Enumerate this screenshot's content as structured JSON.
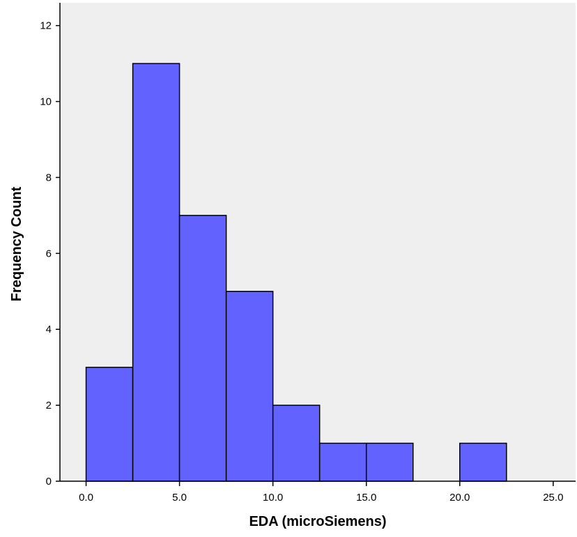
{
  "colors": {
    "plot_background": "#efefef",
    "bar_fill": "#6262ff",
    "bar_stroke": "#000000",
    "axis": "#000000"
  },
  "chart_data": {
    "type": "bar",
    "subtype": "histogram",
    "title": "",
    "xlabel": "EDA (microSiemens)",
    "ylabel": "Frequency Count",
    "bins": [
      {
        "start": 0.0,
        "end": 2.5,
        "count": 3
      },
      {
        "start": 2.5,
        "end": 5.0,
        "count": 11
      },
      {
        "start": 5.0,
        "end": 7.5,
        "count": 7
      },
      {
        "start": 7.5,
        "end": 10.0,
        "count": 5
      },
      {
        "start": 10.0,
        "end": 12.5,
        "count": 2
      },
      {
        "start": 12.5,
        "end": 15.0,
        "count": 1
      },
      {
        "start": 15.0,
        "end": 17.5,
        "count": 1
      },
      {
        "start": 20.0,
        "end": 22.5,
        "count": 1
      }
    ],
    "xlim": [
      -1.4,
      26.2
    ],
    "ylim": [
      0,
      12.6
    ],
    "x_ticks": [
      0,
      5,
      10,
      15,
      20,
      25
    ],
    "x_tick_labels": [
      "0.0",
      "5.0",
      "10.0",
      "15.0",
      "20.0",
      "25.0"
    ],
    "y_ticks": [
      0,
      2,
      4,
      6,
      8,
      10,
      12
    ],
    "y_tick_labels": [
      "0",
      "2",
      "4",
      "6",
      "8",
      "10",
      "12"
    ],
    "grid": false,
    "legend": "none"
  }
}
